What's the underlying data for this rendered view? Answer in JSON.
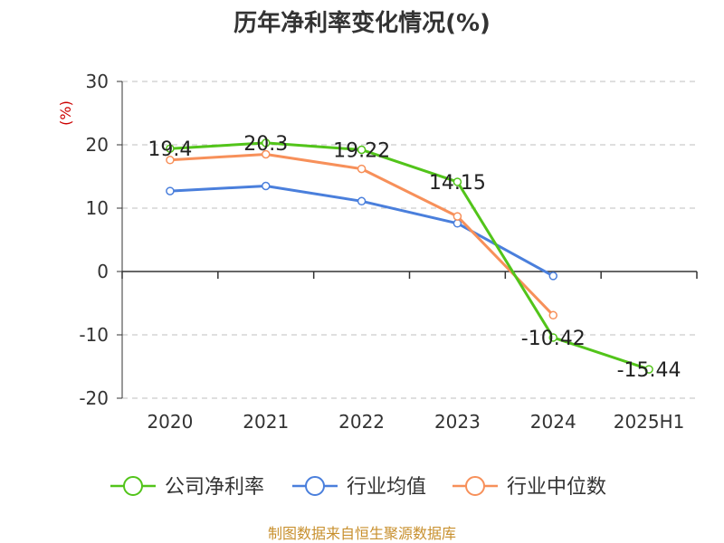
{
  "chart_data": {
    "type": "line",
    "title": "历年净利率变化情况(%)",
    "ylabel": "(%)",
    "categories": [
      "2020",
      "2021",
      "2022",
      "2023",
      "2024",
      "2025H1"
    ],
    "y_ticks": [
      "30",
      "20",
      "10",
      "0",
      "-10",
      "-20"
    ],
    "ylim": [
      -20,
      30
    ],
    "grid": true,
    "legend_position": "bottom",
    "series": [
      {
        "name": "公司净利率",
        "color": "#52c41a",
        "values": [
          19.4,
          20.3,
          19.22,
          14.15,
          -10.42,
          -15.44
        ],
        "labels": [
          "19.4",
          "20.3",
          "19.22",
          "14.15",
          "-10.42",
          "-15.44"
        ]
      },
      {
        "name": "行业均值",
        "color": "#4a7fdc",
        "values": [
          12.7,
          13.5,
          11.1,
          7.6,
          -0.7,
          null
        ]
      },
      {
        "name": "行业中位数",
        "color": "#f7905a",
        "values": [
          17.6,
          18.5,
          16.2,
          8.7,
          -6.9,
          null
        ]
      }
    ]
  },
  "source_text": "制图数据来自恒生聚源数据库",
  "colors": {
    "unit": "#cc0000",
    "source": "#c8902e",
    "grid": "#cccccc",
    "axis": "#333333"
  }
}
